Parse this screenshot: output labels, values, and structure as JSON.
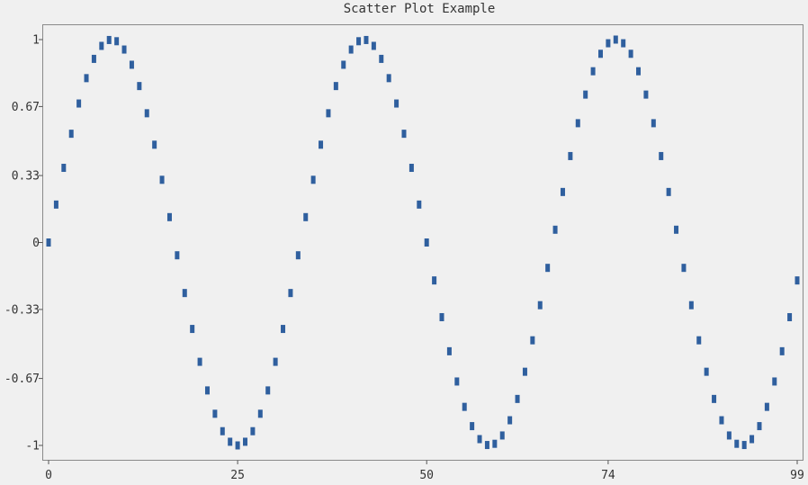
{
  "colors": {
    "background": "#f0f0f0",
    "marker": "#2f5f9e",
    "frame": "#8a8a8a"
  },
  "chart_data": {
    "type": "scatter",
    "title": "Scatter Plot Example",
    "xlabel": "",
    "ylabel": "",
    "xlim": [
      0,
      99
    ],
    "ylim": [
      -1,
      1
    ],
    "x_ticks": [
      0,
      25,
      50,
      74,
      99
    ],
    "x_tick_labels": [
      "0",
      "25",
      "50",
      "74",
      "99"
    ],
    "y_ticks": [
      1,
      0.67,
      0.33,
      0,
      -0.33,
      -0.67,
      -1
    ],
    "y_tick_labels": [
      "1",
      "0.67",
      "0.33",
      "0",
      "-0.33",
      "-0.67",
      "-1"
    ],
    "grid": false,
    "legend": "none",
    "series": [
      {
        "x": [
          0,
          1,
          2,
          3,
          4,
          5,
          6,
          7,
          8,
          9,
          10,
          11,
          12,
          13,
          14,
          15,
          16,
          17,
          18,
          19,
          20,
          21,
          22,
          23,
          24,
          25,
          26,
          27,
          28,
          29,
          30,
          31,
          32,
          33,
          34,
          35,
          36,
          37,
          38,
          39,
          40,
          41,
          42,
          43,
          44,
          45,
          46,
          47,
          48,
          49,
          50,
          51,
          52,
          53,
          54,
          55,
          56,
          57,
          58,
          59,
          60,
          61,
          62,
          63,
          64,
          65,
          66,
          67,
          68,
          69,
          70,
          71,
          72,
          73,
          74,
          75,
          76,
          77,
          78,
          79,
          80,
          81,
          82,
          83,
          84,
          85,
          86,
          87,
          88,
          89,
          90,
          91,
          92,
          93,
          94,
          95,
          96,
          97,
          98,
          99
        ],
        "y": [
          0,
          0.187,
          0.368,
          0.536,
          0.685,
          0.81,
          0.905,
          0.969,
          0.998,
          0.992,
          0.951,
          0.876,
          0.771,
          0.637,
          0.482,
          0.309,
          0.125,
          -0.063,
          -0.249,
          -0.426,
          -0.588,
          -0.729,
          -0.844,
          -0.93,
          -0.982,
          -1,
          -0.982,
          -0.93,
          -0.844,
          -0.729,
          -0.588,
          -0.426,
          -0.249,
          -0.063,
          0.125,
          0.309,
          0.482,
          0.637,
          0.771,
          0.876,
          0.951,
          0.992,
          0.998,
          0.969,
          0.905,
          0.81,
          0.685,
          0.536,
          0.368,
          0.187,
          0,
          -0.187,
          -0.368,
          -0.536,
          -0.685,
          -0.81,
          -0.905,
          -0.969,
          -0.998,
          -0.992,
          -0.951,
          -0.876,
          -0.771,
          -0.637,
          -0.482,
          -0.309,
          -0.125,
          0.063,
          0.249,
          0.426,
          0.588,
          0.729,
          0.844,
          0.93,
          0.982,
          1,
          0.982,
          0.93,
          0.844,
          0.729,
          0.588,
          0.426,
          0.249,
          0.063,
          -0.125,
          -0.309,
          -0.482,
          -0.637,
          -0.771,
          -0.876,
          -0.951,
          -0.992,
          -0.998,
          -0.969,
          -0.905,
          -0.81,
          -0.685,
          -0.536,
          -0.368,
          -0.187
        ]
      }
    ]
  }
}
